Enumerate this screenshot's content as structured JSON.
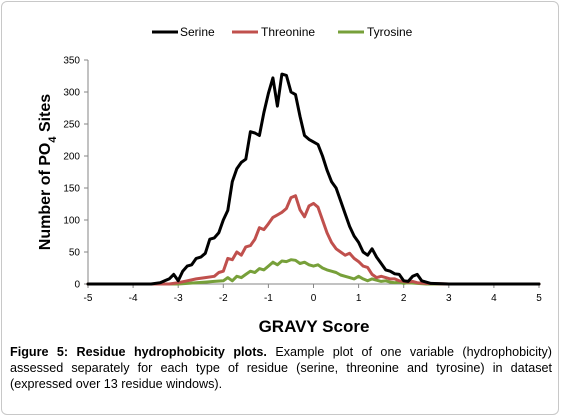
{
  "chart_data": {
    "type": "line",
    "title": "",
    "xlabel": "GRAVY Score",
    "ylabel": "Number of PO4 Sites",
    "ylabel_parts": {
      "main": "Number of PO",
      "sub": "4",
      "tail": " Sites"
    },
    "xlim": [
      -5,
      5
    ],
    "ylim": [
      0,
      350
    ],
    "x_ticks": [
      -5,
      -4,
      -3,
      -2,
      -1,
      0,
      1,
      2,
      3,
      4,
      5
    ],
    "y_ticks": [
      0,
      50,
      100,
      150,
      200,
      250,
      300,
      350
    ],
    "grid": false,
    "legend": "top",
    "series": [
      {
        "name": "Serine",
        "color": "#000000",
        "points": [
          [
            -5,
            0
          ],
          [
            -4,
            0
          ],
          [
            -3.6,
            0
          ],
          [
            -3.4,
            2
          ],
          [
            -3.3,
            5
          ],
          [
            -3.2,
            8
          ],
          [
            -3.1,
            15
          ],
          [
            -3.0,
            5
          ],
          [
            -2.9,
            20
          ],
          [
            -2.8,
            28
          ],
          [
            -2.7,
            30
          ],
          [
            -2.6,
            40
          ],
          [
            -2.5,
            42
          ],
          [
            -2.4,
            48
          ],
          [
            -2.3,
            70
          ],
          [
            -2.2,
            72
          ],
          [
            -2.1,
            80
          ],
          [
            -2.0,
            100
          ],
          [
            -1.9,
            115
          ],
          [
            -1.8,
            160
          ],
          [
            -1.7,
            180
          ],
          [
            -1.6,
            190
          ],
          [
            -1.5,
            195
          ],
          [
            -1.4,
            238
          ],
          [
            -1.3,
            236
          ],
          [
            -1.2,
            232
          ],
          [
            -1.1,
            268
          ],
          [
            -1.0,
            298
          ],
          [
            -0.9,
            322
          ],
          [
            -0.8,
            278
          ],
          [
            -0.7,
            328
          ],
          [
            -0.6,
            326
          ],
          [
            -0.5,
            300
          ],
          [
            -0.4,
            296
          ],
          [
            -0.3,
            262
          ],
          [
            -0.2,
            232
          ],
          [
            -0.1,
            226
          ],
          [
            0.0,
            222
          ],
          [
            0.1,
            218
          ],
          [
            0.2,
            200
          ],
          [
            0.3,
            178
          ],
          [
            0.4,
            160
          ],
          [
            0.5,
            150
          ],
          [
            0.6,
            130
          ],
          [
            0.7,
            110
          ],
          [
            0.8,
            90
          ],
          [
            0.9,
            75
          ],
          [
            1.0,
            65
          ],
          [
            1.1,
            50
          ],
          [
            1.2,
            45
          ],
          [
            1.3,
            55
          ],
          [
            1.4,
            42
          ],
          [
            1.5,
            32
          ],
          [
            1.6,
            22
          ],
          [
            1.7,
            20
          ],
          [
            1.8,
            16
          ],
          [
            1.9,
            15
          ],
          [
            2.0,
            5
          ],
          [
            2.1,
            4
          ],
          [
            2.2,
            12
          ],
          [
            2.3,
            15
          ],
          [
            2.4,
            5
          ],
          [
            2.6,
            1
          ],
          [
            3.0,
            0
          ],
          [
            5,
            0
          ]
        ]
      },
      {
        "name": "Threonine",
        "color": "#c0504d",
        "points": [
          [
            -5,
            0
          ],
          [
            -3.2,
            0
          ],
          [
            -3.0,
            2
          ],
          [
            -2.8,
            5
          ],
          [
            -2.6,
            8
          ],
          [
            -2.4,
            10
          ],
          [
            -2.2,
            12
          ],
          [
            -2.1,
            18
          ],
          [
            -2.0,
            20
          ],
          [
            -1.9,
            40
          ],
          [
            -1.8,
            38
          ],
          [
            -1.7,
            50
          ],
          [
            -1.6,
            45
          ],
          [
            -1.5,
            58
          ],
          [
            -1.4,
            60
          ],
          [
            -1.3,
            70
          ],
          [
            -1.2,
            88
          ],
          [
            -1.1,
            85
          ],
          [
            -1.0,
            94
          ],
          [
            -0.9,
            104
          ],
          [
            -0.8,
            108
          ],
          [
            -0.7,
            112
          ],
          [
            -0.6,
            118
          ],
          [
            -0.5,
            135
          ],
          [
            -0.4,
            138
          ],
          [
            -0.3,
            116
          ],
          [
            -0.2,
            105
          ],
          [
            -0.1,
            122
          ],
          [
            0.0,
            126
          ],
          [
            0.1,
            120
          ],
          [
            0.2,
            100
          ],
          [
            0.3,
            80
          ],
          [
            0.4,
            65
          ],
          [
            0.5,
            55
          ],
          [
            0.6,
            50
          ],
          [
            0.7,
            45
          ],
          [
            0.8,
            48
          ],
          [
            0.9,
            40
          ],
          [
            1.0,
            35
          ],
          [
            1.1,
            28
          ],
          [
            1.2,
            26
          ],
          [
            1.3,
            15
          ],
          [
            1.4,
            10
          ],
          [
            1.5,
            12
          ],
          [
            1.6,
            10
          ],
          [
            1.7,
            8
          ],
          [
            1.8,
            8
          ],
          [
            1.9,
            5
          ],
          [
            2.0,
            4
          ],
          [
            2.1,
            3
          ],
          [
            2.2,
            4
          ],
          [
            2.3,
            2
          ],
          [
            2.5,
            1
          ],
          [
            3.0,
            0
          ],
          [
            5,
            0
          ]
        ]
      },
      {
        "name": "Tyrosine",
        "color": "#77a03a",
        "points": [
          [
            -5,
            0
          ],
          [
            -3.0,
            0
          ],
          [
            -2.6,
            2
          ],
          [
            -2.4,
            3
          ],
          [
            -2.2,
            4
          ],
          [
            -2.0,
            5
          ],
          [
            -1.9,
            10
          ],
          [
            -1.8,
            5
          ],
          [
            -1.7,
            12
          ],
          [
            -1.6,
            10
          ],
          [
            -1.5,
            15
          ],
          [
            -1.4,
            20
          ],
          [
            -1.3,
            18
          ],
          [
            -1.2,
            24
          ],
          [
            -1.1,
            22
          ],
          [
            -1.0,
            28
          ],
          [
            -0.9,
            34
          ],
          [
            -0.8,
            30
          ],
          [
            -0.7,
            36
          ],
          [
            -0.6,
            35
          ],
          [
            -0.5,
            38
          ],
          [
            -0.4,
            37
          ],
          [
            -0.3,
            32
          ],
          [
            -0.2,
            34
          ],
          [
            -0.1,
            30
          ],
          [
            0.0,
            28
          ],
          [
            0.1,
            30
          ],
          [
            0.2,
            25
          ],
          [
            0.3,
            22
          ],
          [
            0.4,
            20
          ],
          [
            0.5,
            18
          ],
          [
            0.6,
            14
          ],
          [
            0.7,
            12
          ],
          [
            0.8,
            10
          ],
          [
            0.9,
            8
          ],
          [
            1.0,
            12
          ],
          [
            1.1,
            8
          ],
          [
            1.2,
            5
          ],
          [
            1.3,
            8
          ],
          [
            1.4,
            6
          ],
          [
            1.5,
            4
          ],
          [
            1.6,
            5
          ],
          [
            1.7,
            3
          ],
          [
            1.8,
            2
          ],
          [
            1.9,
            3
          ],
          [
            2.0,
            1
          ],
          [
            2.1,
            2
          ],
          [
            2.3,
            1
          ],
          [
            2.5,
            0
          ],
          [
            5,
            0
          ]
        ]
      }
    ]
  },
  "caption": {
    "label": "Figure 5: Residue hydrophobicity plots.",
    "text": " Example plot of one variable (hydrophobicity) assessed separately for each type of residue (serine, threonine and tyrosine) in dataset (expressed over 13 residue windows)."
  }
}
